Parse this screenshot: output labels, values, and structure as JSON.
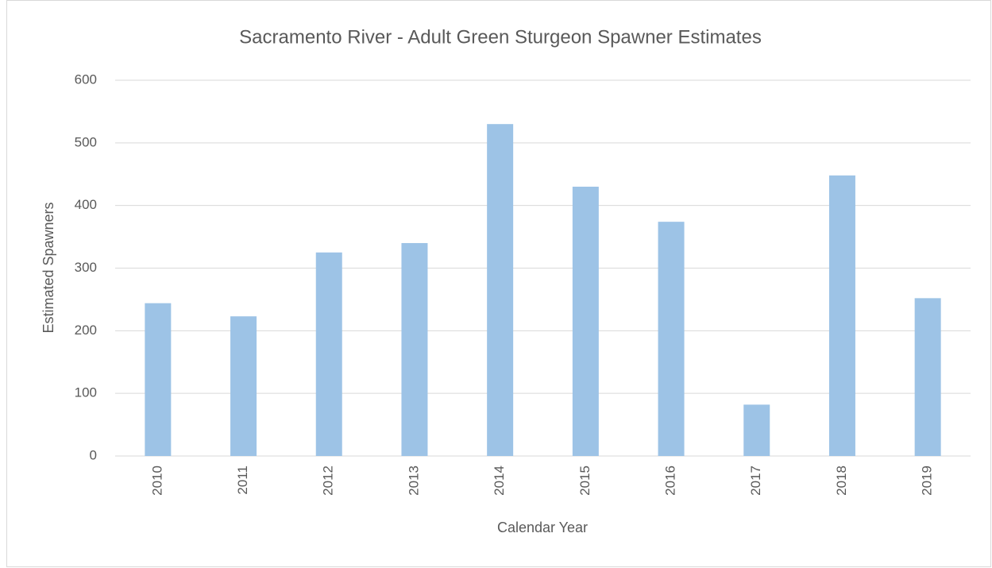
{
  "chart_data": {
    "type": "bar",
    "title": "Sacramento River - Adult Green Sturgeon Spawner Estimates",
    "x_label": "Calendar Year",
    "y_label": "Estimated Spawners",
    "categories": [
      "2010",
      "2011",
      "2012",
      "2013",
      "2014",
      "2015",
      "2016",
      "2017",
      "2018",
      "2019"
    ],
    "values": [
      244,
      223,
      325,
      340,
      530,
      430,
      374,
      82,
      448,
      252
    ],
    "color": "#9dc3e6",
    "ylim": [
      0,
      600
    ],
    "yticks": [
      0,
      100,
      200,
      300,
      400,
      500,
      600
    ],
    "grid": true
  }
}
